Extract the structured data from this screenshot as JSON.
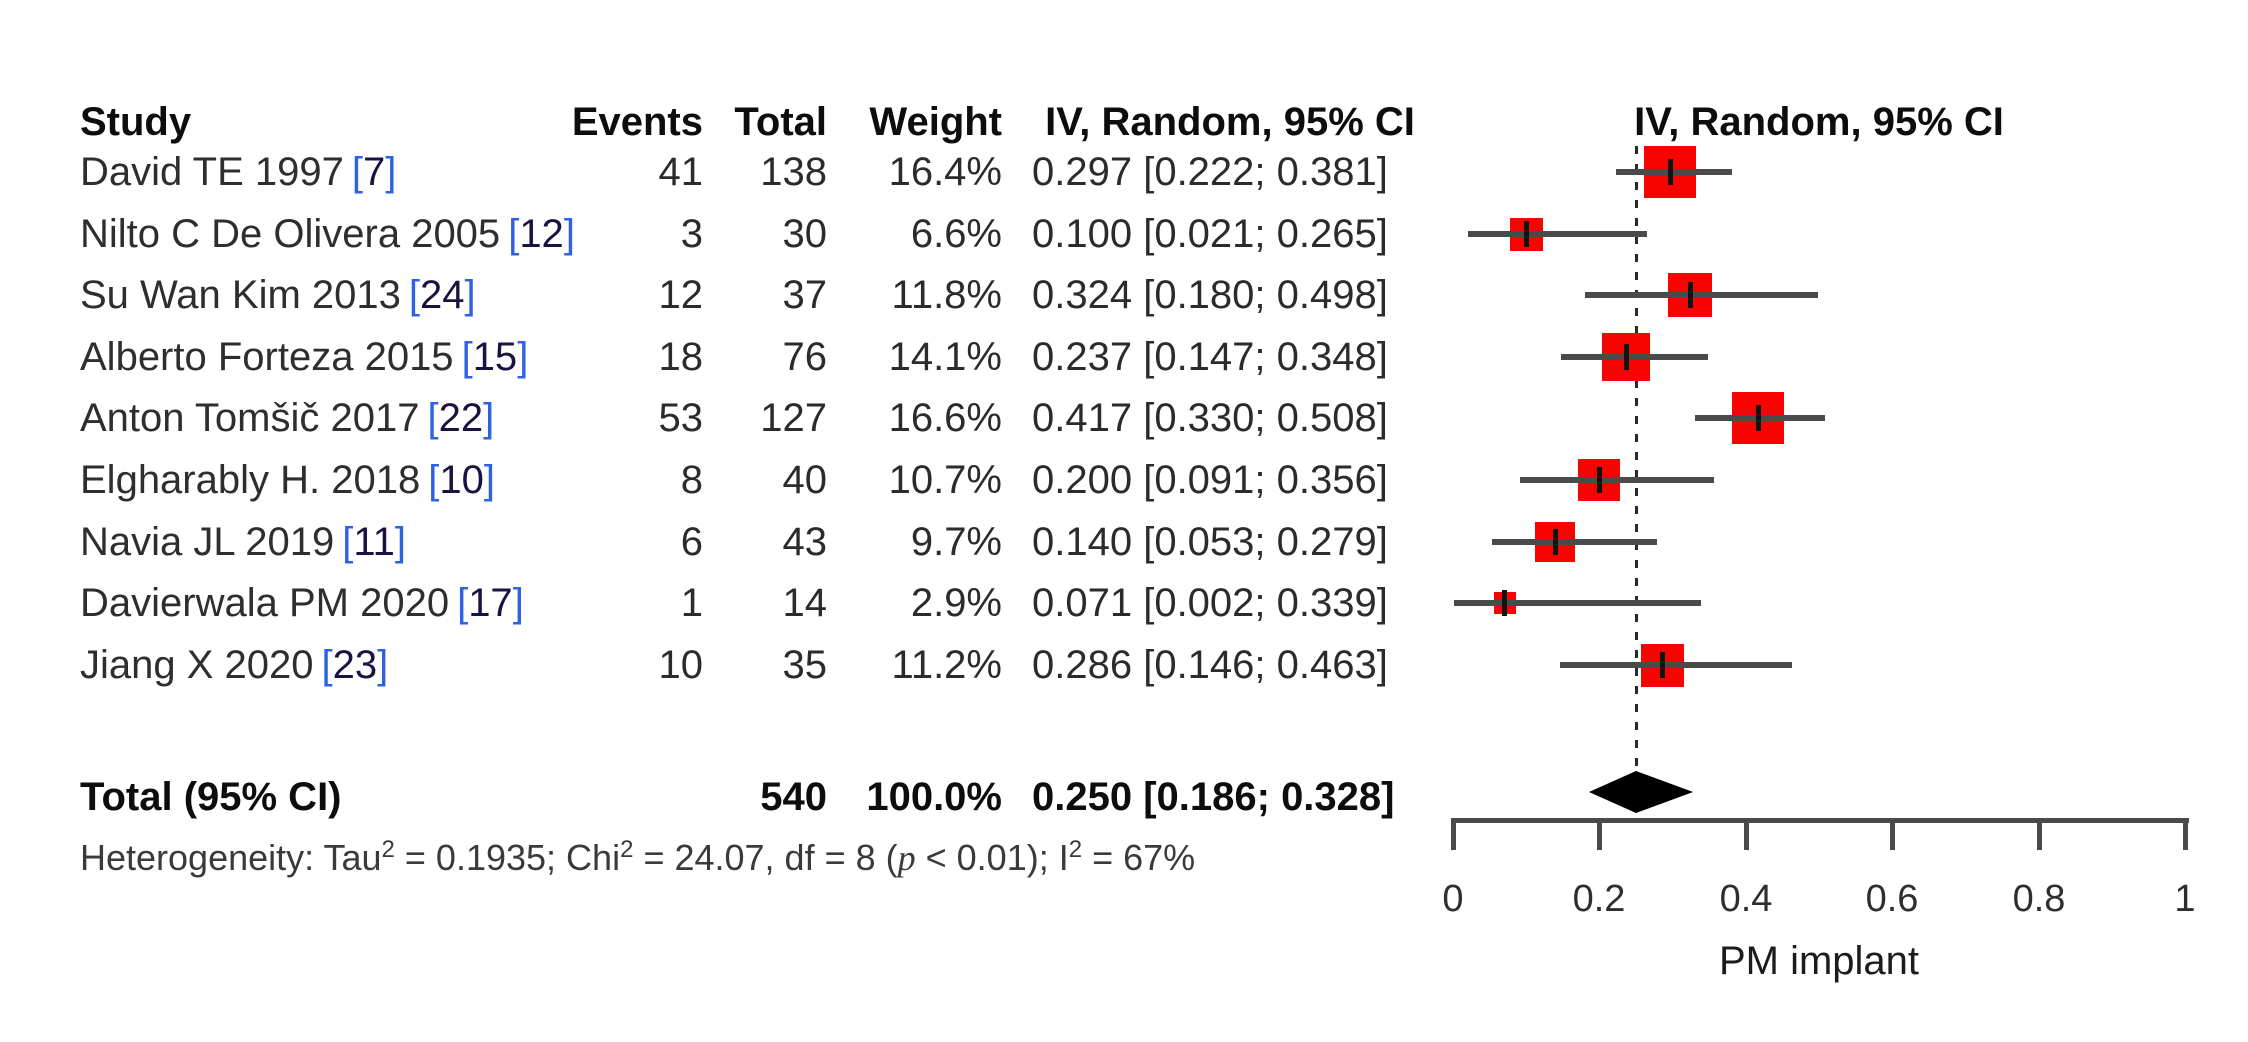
{
  "table": {
    "header": {
      "study": "Study",
      "events": "Events",
      "total": "Total",
      "weight": "Weight",
      "ci": "IV, Random, 95% CI"
    },
    "rows": [
      {
        "study": "David TE 1997",
        "cite": "[7]",
        "events": "41",
        "total": "138",
        "weight": "16.4%",
        "ci_text": "0.297 [0.222; 0.381]"
      },
      {
        "study": "Nilto C De Olivera 2005",
        "cite": "[12]",
        "events": "3",
        "total": "30",
        "weight": "6.6%",
        "ci_text": "0.100 [0.021; 0.265]"
      },
      {
        "study": "Su Wan Kim 2013",
        "cite": "[24]",
        "events": "12",
        "total": "37",
        "weight": "11.8%",
        "ci_text": "0.324 [0.180; 0.498]"
      },
      {
        "study": "Alberto Forteza 2015",
        "cite": "[15]",
        "events": "18",
        "total": "76",
        "weight": "14.1%",
        "ci_text": "0.237 [0.147; 0.348]"
      },
      {
        "study": "Anton Tomšič 2017",
        "cite": "[22]",
        "events": "53",
        "total": "127",
        "weight": "16.6%",
        "ci_text": "0.417 [0.330; 0.508]"
      },
      {
        "study": "Elgharably H. 2018",
        "cite": "[10]",
        "events": "8",
        "total": "40",
        "weight": "10.7%",
        "ci_text": "0.200 [0.091; 0.356]"
      },
      {
        "study": "Navia JL 2019",
        "cite": "[11]",
        "events": "6",
        "total": "43",
        "weight": "9.7%",
        "ci_text": "0.140 [0.053; 0.279]"
      },
      {
        "study": "Davierwala PM 2020",
        "cite": "[17]",
        "events": "1",
        "total": "14",
        "weight": "2.9%",
        "ci_text": "0.071 [0.002; 0.339]"
      },
      {
        "study": "Jiang X 2020",
        "cite": "[23]",
        "events": "10",
        "total": "35",
        "weight": "11.2%",
        "ci_text": "0.286 [0.146; 0.463]"
      }
    ],
    "total_row": {
      "label": "Total (95% CI)",
      "total": "540",
      "weight": "100.0%",
      "ci_text": "0.250 [0.186; 0.328]"
    },
    "heterogeneity": {
      "t1": "Heterogeneity: Tau",
      "sup1": "2",
      "t2": " = 0.1935; Chi",
      "sup2": "2",
      "t3": " = 24.07, df = 8 (",
      "p": "p",
      "t4": " < 0.01); I",
      "sup3": "2",
      "t5": " = 67%"
    }
  },
  "chart_data": {
    "type": "forest",
    "title": "IV, Random, 95% CI",
    "xlabel": "PM implant",
    "xlim": [
      0,
      1
    ],
    "x_ticks": [
      0,
      0.2,
      0.4,
      0.6,
      0.8,
      1
    ],
    "x_tick_labels": [
      "0",
      "0.2",
      "0.4",
      "0.6",
      "0.8",
      "1"
    ],
    "reference_line": 0.25,
    "marker_color": "#f80400",
    "studies": [
      {
        "name": "David TE 1997 [7]",
        "estimate": 0.297,
        "ci_low": 0.222,
        "ci_high": 0.381,
        "weight_pct": 16.4
      },
      {
        "name": "Nilto C De Olivera 2005 [12]",
        "estimate": 0.1,
        "ci_low": 0.021,
        "ci_high": 0.265,
        "weight_pct": 6.6
      },
      {
        "name": "Su Wan Kim 2013 [24]",
        "estimate": 0.324,
        "ci_low": 0.18,
        "ci_high": 0.498,
        "weight_pct": 11.8
      },
      {
        "name": "Alberto Forteza 2015 [15]",
        "estimate": 0.237,
        "ci_low": 0.147,
        "ci_high": 0.348,
        "weight_pct": 14.1
      },
      {
        "name": "Anton Tomšič 2017 [22]",
        "estimate": 0.417,
        "ci_low": 0.33,
        "ci_high": 0.508,
        "weight_pct": 16.6
      },
      {
        "name": "Elgharably H. 2018 [10]",
        "estimate": 0.2,
        "ci_low": 0.091,
        "ci_high": 0.356,
        "weight_pct": 10.7
      },
      {
        "name": "Navia JL 2019 [11]",
        "estimate": 0.14,
        "ci_low": 0.053,
        "ci_high": 0.279,
        "weight_pct": 9.7
      },
      {
        "name": "Davierwala PM 2020 [17]",
        "estimate": 0.071,
        "ci_low": 0.002,
        "ci_high": 0.339,
        "weight_pct": 2.9
      },
      {
        "name": "Jiang X 2020 [23]",
        "estimate": 0.286,
        "ci_low": 0.146,
        "ci_high": 0.463,
        "weight_pct": 11.2
      }
    ],
    "pooled": {
      "label": "Total (95% CI)",
      "estimate": 0.25,
      "ci_low": 0.186,
      "ci_high": 0.328,
      "total_n": 540,
      "weight_pct": 100.0
    },
    "heterogeneity_text": "Heterogeneity: Tau2 = 0.1935; Chi2 = 24.07, df = 8 (p < 0.01); I2 = 67%"
  }
}
